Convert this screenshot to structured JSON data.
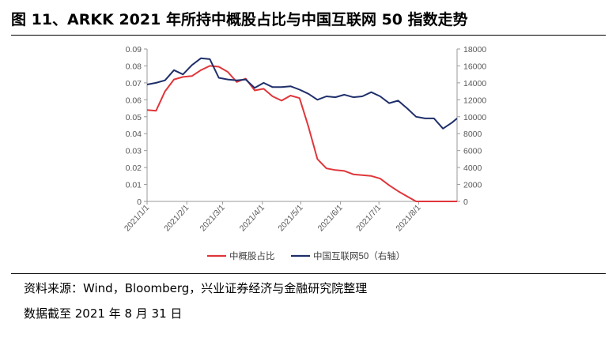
{
  "header": {
    "title": "图 11、ARKK 2021 年所持中概股占比与中国互联网 50 指数走势"
  },
  "footer": {
    "source": "资料来源：Wind，Bloomberg，兴业证券经济与金融研究院整理",
    "date_note": "数据截至 2021 年 8 月 31 日"
  },
  "chart_data": {
    "type": "line",
    "x_ticks": [
      "2021/1/1",
      "2021/2/1",
      "2021/3/1",
      "2021/4/1",
      "2021/5/1",
      "2021/6/1",
      "2021/7/1",
      "2021/8/1"
    ],
    "x_range": [
      "2021/1/1",
      "2021/8/31"
    ],
    "y_left": {
      "range": [
        0,
        0.09
      ],
      "ticks": [
        "0",
        "0.01",
        "0.02",
        "0.03",
        "0.04",
        "0.05",
        "0.06",
        "0.07",
        "0.08",
        "0.09"
      ]
    },
    "y_right": {
      "range": [
        0,
        18000
      ],
      "ticks": [
        "0",
        "2000",
        "4000",
        "6000",
        "8000",
        "10000",
        "12000",
        "14000",
        "16000",
        "18000"
      ]
    },
    "series": [
      {
        "name": "中概股占比",
        "axis": "left",
        "color": "#e0363a",
        "points": [
          [
            "2021/1/1",
            0.054
          ],
          [
            "2021/1/8",
            0.0535
          ],
          [
            "2021/1/15",
            0.065
          ],
          [
            "2021/1/22",
            0.072
          ],
          [
            "2021/1/29",
            0.0735
          ],
          [
            "2021/2/5",
            0.074
          ],
          [
            "2021/2/12",
            0.0775
          ],
          [
            "2021/2/19",
            0.08
          ],
          [
            "2021/2/26",
            0.0795
          ],
          [
            "2021/3/5",
            0.0765
          ],
          [
            "2021/3/12",
            0.0705
          ],
          [
            "2021/3/19",
            0.0725
          ],
          [
            "2021/3/26",
            0.0655
          ],
          [
            "2021/4/2",
            0.0665
          ],
          [
            "2021/4/9",
            0.062
          ],
          [
            "2021/4/16",
            0.0595
          ],
          [
            "2021/4/23",
            0.0625
          ],
          [
            "2021/4/30",
            0.061
          ],
          [
            "2021/5/7",
            0.044
          ],
          [
            "2021/5/14",
            0.025
          ],
          [
            "2021/5/21",
            0.0195
          ],
          [
            "2021/5/28",
            0.0185
          ],
          [
            "2021/6/4",
            0.018
          ],
          [
            "2021/6/11",
            0.016
          ],
          [
            "2021/6/18",
            0.0155
          ],
          [
            "2021/6/25",
            0.015
          ],
          [
            "2021/7/2",
            0.0135
          ],
          [
            "2021/7/9",
            0.0095
          ],
          [
            "2021/7/16",
            0.006
          ],
          [
            "2021/7/23",
            0.003
          ],
          [
            "2021/7/30",
            0.0
          ],
          [
            "2021/8/6",
            0.0
          ],
          [
            "2021/8/13",
            0.0
          ],
          [
            "2021/8/20",
            0.0
          ],
          [
            "2021/8/27",
            0.0
          ],
          [
            "2021/8/31",
            0.0
          ]
        ]
      },
      {
        "name": "中国互联网50（右轴）",
        "axis": "right",
        "color": "#1f2f6b",
        "points": [
          [
            "2021/1/1",
            13800
          ],
          [
            "2021/1/8",
            14000
          ],
          [
            "2021/1/15",
            14300
          ],
          [
            "2021/1/22",
            15500
          ],
          [
            "2021/1/29",
            15000
          ],
          [
            "2021/2/5",
            16100
          ],
          [
            "2021/2/12",
            16900
          ],
          [
            "2021/2/19",
            16800
          ],
          [
            "2021/2/26",
            14600
          ],
          [
            "2021/3/5",
            14400
          ],
          [
            "2021/3/12",
            14300
          ],
          [
            "2021/3/19",
            14400
          ],
          [
            "2021/3/26",
            13400
          ],
          [
            "2021/4/2",
            14000
          ],
          [
            "2021/4/9",
            13500
          ],
          [
            "2021/4/16",
            13500
          ],
          [
            "2021/4/23",
            13600
          ],
          [
            "2021/4/30",
            13200
          ],
          [
            "2021/5/7",
            12700
          ],
          [
            "2021/5/14",
            12000
          ],
          [
            "2021/5/21",
            12400
          ],
          [
            "2021/5/28",
            12300
          ],
          [
            "2021/6/4",
            12600
          ],
          [
            "2021/6/11",
            12300
          ],
          [
            "2021/6/18",
            12400
          ],
          [
            "2021/6/25",
            12900
          ],
          [
            "2021/7/2",
            12400
          ],
          [
            "2021/7/9",
            11600
          ],
          [
            "2021/7/16",
            11900
          ],
          [
            "2021/7/23",
            11000
          ],
          [
            "2021/7/30",
            10000
          ],
          [
            "2021/8/6",
            9800
          ],
          [
            "2021/8/13",
            9800
          ],
          [
            "2021/8/20",
            8600
          ],
          [
            "2021/8/27",
            9300
          ],
          [
            "2021/8/31",
            9800
          ]
        ]
      }
    ],
    "legend": {
      "placement": "bottom"
    },
    "grid": false
  }
}
